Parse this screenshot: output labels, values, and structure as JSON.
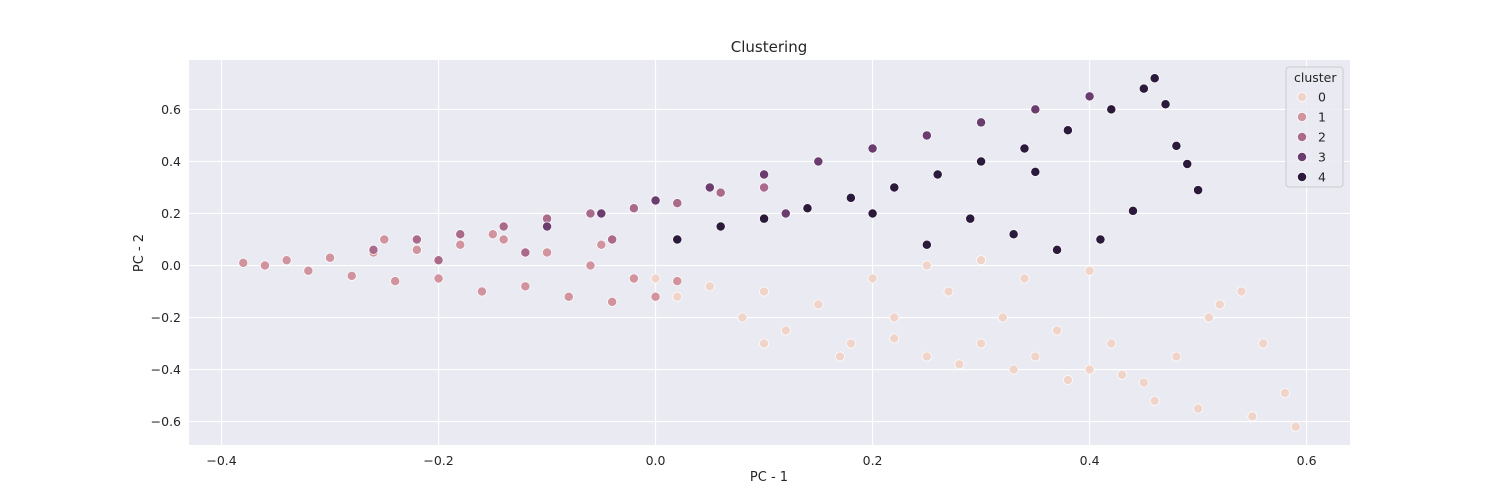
{
  "chart_data": {
    "type": "scatter",
    "title": "Clustering",
    "xlabel": "PC - 1",
    "ylabel": "PC - 2",
    "xlim": [
      -0.43,
      0.64
    ],
    "ylim": [
      -0.69,
      0.79
    ],
    "xticks": [
      -0.4,
      -0.2,
      0.0,
      0.2,
      0.4,
      0.6
    ],
    "xtick_labels": [
      "−0.4",
      "−0.2",
      "0.0",
      "0.2",
      "0.4",
      "0.6"
    ],
    "yticks": [
      -0.6,
      -0.4,
      -0.2,
      0.0,
      0.2,
      0.4,
      0.6
    ],
    "ytick_labels": [
      "−0.6",
      "−0.4",
      "−0.2",
      "0.0",
      "0.2",
      "0.4",
      "0.6"
    ],
    "grid": true,
    "background_color": "#eaeaf2",
    "legend": {
      "title": "cluster",
      "position": "top-right",
      "entries": [
        "0",
        "1",
        "2",
        "3",
        "4"
      ]
    },
    "series": [
      {
        "name": "0",
        "color": "#f0d4c9",
        "x": [
          0.0,
          0.02,
          0.05,
          0.08,
          0.1,
          0.12,
          0.15,
          0.18,
          0.2,
          0.22,
          0.25,
          0.27,
          0.3,
          0.32,
          0.35,
          0.37,
          0.4,
          0.42,
          0.45,
          0.48,
          0.5,
          0.52,
          0.55,
          0.56,
          0.59,
          0.1,
          0.17,
          0.22,
          0.28,
          0.33,
          0.38,
          0.43,
          0.46,
          0.54,
          0.51,
          0.58,
          0.3,
          0.25,
          0.34,
          0.4
        ],
        "y": [
          -0.05,
          -0.12,
          -0.08,
          -0.2,
          -0.1,
          -0.25,
          -0.15,
          -0.3,
          -0.05,
          -0.2,
          -0.35,
          -0.1,
          -0.3,
          -0.2,
          -0.35,
          -0.25,
          -0.4,
          -0.3,
          -0.45,
          -0.35,
          -0.55,
          -0.15,
          -0.58,
          -0.3,
          -0.62,
          -0.3,
          -0.35,
          -0.28,
          -0.38,
          -0.4,
          -0.44,
          -0.42,
          -0.52,
          -0.1,
          -0.2,
          -0.49,
          0.02,
          -0.0,
          -0.05,
          -0.02
        ]
      },
      {
        "name": "1",
        "color": "#d1949e",
        "x": [
          -0.38,
          -0.36,
          -0.34,
          -0.32,
          -0.3,
          -0.28,
          -0.26,
          -0.24,
          -0.22,
          -0.2,
          -0.18,
          -0.16,
          -0.14,
          -0.12,
          -0.1,
          -0.08,
          -0.06,
          -0.04,
          -0.02,
          0.0,
          0.02,
          -0.25,
          -0.15,
          -0.05
        ],
        "y": [
          0.01,
          0.0,
          0.02,
          -0.02,
          0.03,
          -0.04,
          0.05,
          -0.06,
          0.06,
          -0.05,
          0.08,
          -0.1,
          0.1,
          -0.08,
          0.05,
          -0.12,
          0.0,
          -0.14,
          -0.05,
          -0.12,
          -0.06,
          0.1,
          0.12,
          0.08
        ]
      },
      {
        "name": "2",
        "color": "#aa6a8c",
        "x": [
          -0.26,
          -0.22,
          -0.18,
          -0.14,
          -0.1,
          -0.06,
          -0.02,
          0.02,
          0.06,
          0.1,
          -0.2,
          -0.12,
          -0.04
        ],
        "y": [
          0.06,
          0.1,
          0.12,
          0.15,
          0.18,
          0.2,
          0.22,
          0.24,
          0.28,
          0.3,
          0.02,
          0.05,
          0.1
        ]
      },
      {
        "name": "3",
        "color": "#6b3d6e",
        "x": [
          -0.1,
          -0.05,
          0.0,
          0.05,
          0.1,
          0.15,
          0.2,
          0.25,
          0.3,
          0.35,
          0.4,
          0.12,
          0.22
        ],
        "y": [
          0.15,
          0.2,
          0.25,
          0.3,
          0.35,
          0.4,
          0.45,
          0.5,
          0.55,
          0.6,
          0.65,
          0.2,
          0.3
        ]
      },
      {
        "name": "4",
        "color": "#2b1a3b",
        "x": [
          0.02,
          0.06,
          0.1,
          0.14,
          0.18,
          0.22,
          0.26,
          0.3,
          0.34,
          0.38,
          0.42,
          0.45,
          0.46,
          0.47,
          0.48,
          0.49,
          0.5,
          0.44,
          0.41,
          0.37,
          0.33,
          0.29,
          0.25,
          0.2,
          0.35
        ],
        "y": [
          0.1,
          0.15,
          0.18,
          0.22,
          0.26,
          0.3,
          0.35,
          0.4,
          0.45,
          0.52,
          0.6,
          0.68,
          0.72,
          0.62,
          0.46,
          0.39,
          0.29,
          0.21,
          0.1,
          0.06,
          0.12,
          0.18,
          0.08,
          0.2,
          0.36
        ]
      }
    ]
  }
}
